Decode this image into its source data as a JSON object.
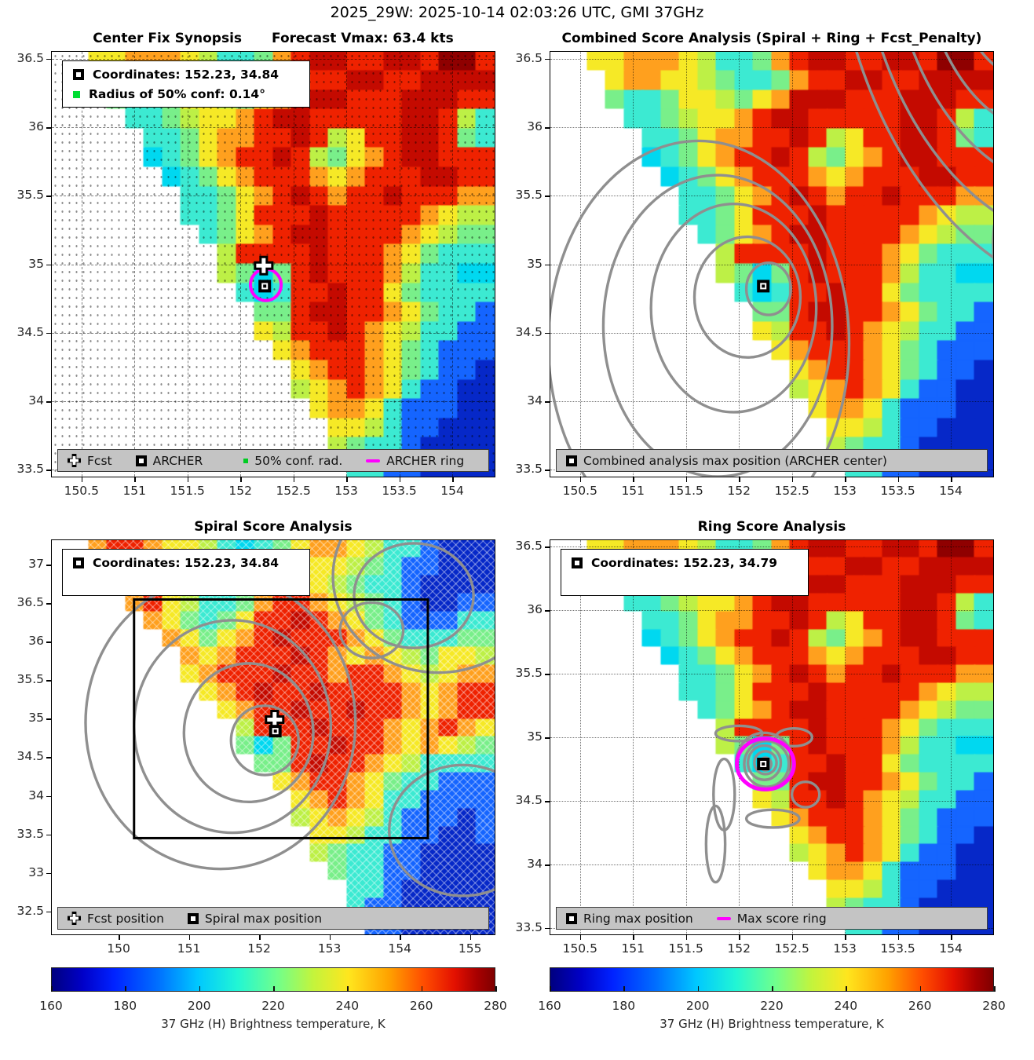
{
  "header": {
    "title": "2025_29W: 2025-10-14 02:03:26 UTC, GMI 37GHz"
  },
  "palette": {
    ".": "#ffffff",
    "B": "#0628c8",
    "b": "#1565ff",
    "C": "#00d8f0",
    "c": "#3cead2",
    "g": "#79ef8a",
    "G": "#bdf046",
    "y": "#f6e926",
    "o": "#ffa01e",
    "O": "#ff5a0c",
    "r": "#ef2200",
    "R": "#c40a00",
    "D": "#8f0000"
  },
  "accent_colors": {
    "ring_magenta": "#ff00ff",
    "contour_gray": "#8f8f8f",
    "legend_bar_gray": "#c4c4c4"
  },
  "chart_data": {
    "type": "heatmap",
    "summary": {
      "storm_id": "2025_29W",
      "time_utc": "2025-10-14 02:03:26",
      "sensor": "GMI 37GHz",
      "forecast_vmax_kts": 63.4,
      "archer_center": {
        "lon": 152.23,
        "lat": 34.84
      },
      "radius_50pct_conf_deg": 0.14,
      "spiral_max": {
        "lon": 152.23,
        "lat": 34.84
      },
      "ring_max": {
        "lon": 152.23,
        "lat": 34.79
      }
    },
    "colorbar": {
      "min": 160,
      "max": 280,
      "ticks": [
        "160",
        "180",
        "200",
        "220",
        "240",
        "260",
        "280"
      ],
      "label": "37 GHz (H) Brightness temperature, K"
    },
    "panels": [
      {
        "id": "center-fix-synopsis",
        "title": "Center Fix Synopsis",
        "title2": "Forecast Vmax: 63.4 kts",
        "xlim": [
          150.22,
          154.4
        ],
        "ylim": [
          33.45,
          36.55
        ],
        "xticks": [
          {
            "v": 150.5,
            "t": "150.5"
          },
          {
            "v": 151,
            "t": "151"
          },
          {
            "v": 151.5,
            "t": "151.5"
          },
          {
            "v": 152,
            "t": "152"
          },
          {
            "v": 152.5,
            "t": "152.5"
          },
          {
            "v": 153,
            "t": "153"
          },
          {
            "v": 153.5,
            "t": "153.5"
          },
          {
            "v": 154,
            "t": "154"
          }
        ],
        "yticks": [
          {
            "v": 36.5,
            "t": "36.5"
          },
          {
            "v": 36,
            "t": "36"
          },
          {
            "v": 35.5,
            "t": "35.5"
          },
          {
            "v": 35,
            "t": "35"
          },
          {
            "v": 34.5,
            "t": "34.5"
          },
          {
            "v": 34,
            "t": "34"
          },
          {
            "v": 33.5,
            "t": "33.5"
          }
        ],
        "grid": "dash",
        "dots": true,
        "hatch": false,
        "heatmap_rows": [
          "..yyoooyGccgorRRrrRRrDDr",
          "...yooyyGgccgorrRRrrRRRR",
          "...gccgyyGgyoRRRrrrRRRrr",
          "....ccgGyyorRRrrrrrRRrGc",
          ".....ccgyoorrRrGyrrRRrgc",
          ".....CcgyorrRrGgyorRRrrr",
          "......CcgyorrroyorrrRRrr",
          ".......ccgyorRrorrRrrroo",
          ".......ccgyrrrRrrrrroyGG",
          "........cgyorRRrrrroyGgg",
          ".........GrrrrRrrroygccc",
          ".........GgCgrRrrroGccCC",
          "..........cCcrrRrrygcccc",
          "...........ggrRRrroygccb",
          "...........yGrrRroyGccbb",
          "............yorrroygcbbb",
          ".............yorroygcbbB",
          ".............GyoroycbbBB",
          "..............yooycbbbBB",
          "...............yyGcbbBBB",
          "...............GgccbBBBB",
          "................ccbbBBBB"
        ],
        "contours": [],
        "rings": [
          {
            "x": 152.24,
            "y": 34.85,
            "rx": 0.145,
            "ry": 0.115,
            "color": "#ff00ff",
            "w": 4,
            "name": "archer-ring"
          }
        ],
        "markers": [
          {
            "type": "plus",
            "x": 152.22,
            "y": 34.99
          },
          {
            "type": "square",
            "x": 152.23,
            "y": 34.84
          }
        ],
        "legend_box": [
          {
            "marker": "square",
            "label": "Coordinates: 152.23, 34.84"
          },
          {
            "marker": "greensq",
            "label": "Radius of 50% conf: 0.14°"
          }
        ],
        "legend_bar": [
          {
            "marker": "plus",
            "label": "Fcst"
          },
          {
            "marker": "square",
            "label": "ARCHER"
          },
          {
            "marker": "greendot",
            "label": "50% conf. rad."
          },
          {
            "marker": "magline",
            "label": "ARCHER ring"
          }
        ]
      },
      {
        "id": "combined-score-analysis",
        "title": "Combined Score Analysis (Spiral + Ring + Fcst_Penalty)",
        "title2": "",
        "xlim": [
          150.22,
          154.4
        ],
        "ylim": [
          33.45,
          36.55
        ],
        "xticks": [
          {
            "v": 150.5,
            "t": "150.5"
          },
          {
            "v": 151,
            "t": "151"
          },
          {
            "v": 151.5,
            "t": "151.5"
          },
          {
            "v": 152,
            "t": "152"
          },
          {
            "v": 152.5,
            "t": "152.5"
          },
          {
            "v": 153,
            "t": "153"
          },
          {
            "v": 153.5,
            "t": "153.5"
          },
          {
            "v": 154,
            "t": "154"
          }
        ],
        "yticks": [
          {
            "v": 36.5,
            "t": "36.5"
          },
          {
            "v": 36,
            "t": "36"
          },
          {
            "v": 35.5,
            "t": "35.5"
          },
          {
            "v": 35,
            "t": "35"
          },
          {
            "v": 34.5,
            "t": "34.5"
          },
          {
            "v": 34,
            "t": "34"
          },
          {
            "v": 33.5,
            "t": "33.5"
          }
        ],
        "grid": "dot",
        "dots": false,
        "hatch": false,
        "heatmap_ref": 0,
        "contours": [
          [
            152.28,
            34.82,
            0.21,
            0.19
          ],
          [
            152.08,
            34.76,
            0.5,
            0.44
          ],
          [
            151.95,
            34.68,
            0.78,
            0.76
          ],
          [
            151.8,
            34.55,
            1.08,
            1.1
          ],
          [
            151.62,
            34.42,
            1.42,
            1.48
          ],
          [
            154.75,
            37.3,
            0.75,
            0.95
          ],
          [
            154.95,
            37.45,
            1.25,
            1.5
          ],
          [
            155.15,
            37.6,
            1.75,
            2.05
          ],
          [
            155.35,
            37.75,
            2.25,
            2.6
          ],
          [
            155.55,
            37.9,
            2.7,
            3.15
          ],
          [
            155.7,
            35.15,
            1.3,
            1.05
          ]
        ],
        "rings": [],
        "markers": [
          {
            "type": "square",
            "x": 152.23,
            "y": 34.84
          }
        ],
        "legend_box": null,
        "legend_bar": [
          {
            "marker": "square",
            "label": "Combined analysis max position (ARCHER center)"
          }
        ]
      },
      {
        "id": "spiral-score-analysis",
        "title": "Spiral Score Analysis",
        "title2": "",
        "xlim": [
          149.05,
          155.35
        ],
        "ylim": [
          32.2,
          37.32
        ],
        "xticks": [
          {
            "v": 150,
            "t": "150"
          },
          {
            "v": 151,
            "t": "151"
          },
          {
            "v": 152,
            "t": "152"
          },
          {
            "v": 153,
            "t": "153"
          },
          {
            "v": 154,
            "t": "154"
          },
          {
            "v": 155,
            "t": "155"
          }
        ],
        "yticks": [
          {
            "v": 37,
            "t": "37"
          },
          {
            "v": 36.5,
            "t": "36.5"
          },
          {
            "v": 36,
            "t": "36"
          },
          {
            "v": 35.5,
            "t": "35.5"
          },
          {
            "v": 35,
            "t": "35"
          },
          {
            "v": 34.5,
            "t": "34.5"
          },
          {
            "v": 34,
            "t": "34"
          },
          {
            "v": 33.5,
            "t": "33.5"
          },
          {
            "v": 33,
            "t": "33"
          },
          {
            "v": 32.5,
            "t": "32.5"
          }
        ],
        "grid": "none",
        "dots": false,
        "hatch": true,
        "heatmap_rows": [
          "..orroyyGcCcgyooyGccbBBB",
          "...rrooygcccgGyyGgcbbBBB",
          "....rroygcgyyoyGgccbBBBB",
          "....oryGccgorroyGgcbBBbb",
          ".....oygcgyrrRroygcbbbcc",
          "......oygyorRrrroygcccgg",
          ".......oyorrrRroyoyGgyyG",
          ".......yorrrRrrorroyGyoo",
          "........yorRrrRrrrroyorr",
          ".........yorrRrrRrroyorr",
          "..........GrrrRrrroyoroy",
          "..........gCgrrRrroyoyGg",
          "...........ggrRrroyGcccc",
          "............yorroygccbbb",
          ".............yoroyccbbbb",
          ".............GyoyGcbbbBb",
          "..............yyGccbbBBb",
          "..............GgccbbBBBB",
          "...............gccbbBBBB",
          "................ccbBBBBB",
          "................cbbBBBBB",
          ".................bbBBBBB"
        ],
        "contours": [
          [
            152.08,
            34.72,
            0.48,
            0.45
          ],
          [
            151.85,
            34.82,
            0.92,
            0.9
          ],
          [
            151.62,
            34.9,
            1.4,
            1.38
          ],
          [
            151.45,
            34.95,
            1.92,
            1.9
          ],
          [
            153.6,
            36.15,
            0.45,
            0.36
          ],
          [
            154.2,
            36.6,
            0.85,
            0.68
          ],
          [
            154.55,
            36.85,
            1.5,
            1.25
          ],
          [
            154.9,
            33.55,
            1.05,
            0.85
          ]
        ],
        "box": {
          "x0": 150.22,
          "x1": 154.4,
          "y0": 33.45,
          "y1": 36.55
        },
        "rings": [],
        "markers": [
          {
            "type": "plus",
            "x": 152.22,
            "y": 34.99
          },
          {
            "type": "square",
            "x": 152.23,
            "y": 34.84
          }
        ],
        "legend_box": [
          {
            "marker": "square",
            "label": "Coordinates: 152.23, 34.84"
          }
        ],
        "legend_bar": [
          {
            "marker": "plus",
            "label": "Fcst position"
          },
          {
            "marker": "square",
            "label": "Spiral max position"
          }
        ]
      },
      {
        "id": "ring-score-analysis",
        "title": "Ring Score Analysis",
        "title2": "",
        "xlim": [
          150.22,
          154.4
        ],
        "ylim": [
          33.45,
          36.55
        ],
        "xticks": [
          {
            "v": 150.5,
            "t": "150.5"
          },
          {
            "v": 151,
            "t": "151"
          },
          {
            "v": 151.5,
            "t": "151.5"
          },
          {
            "v": 152,
            "t": "152"
          },
          {
            "v": 152.5,
            "t": "152.5"
          },
          {
            "v": 153,
            "t": "153"
          },
          {
            "v": 153.5,
            "t": "153.5"
          },
          {
            "v": 154,
            "t": "154"
          }
        ],
        "yticks": [
          {
            "v": 36.5,
            "t": "36.5"
          },
          {
            "v": 36,
            "t": "36"
          },
          {
            "v": 35.5,
            "t": "35.5"
          },
          {
            "v": 35,
            "t": "35"
          },
          {
            "v": 34.5,
            "t": "34.5"
          },
          {
            "v": 34,
            "t": "34"
          },
          {
            "v": 33.5,
            "t": "33.5"
          }
        ],
        "grid": "dot",
        "dots": false,
        "hatch": false,
        "heatmap_ref": 0,
        "contours": [
          [
            152.25,
            34.79,
            0.055,
            0.05
          ],
          [
            152.25,
            34.8,
            0.105,
            0.09
          ],
          [
            152.24,
            34.8,
            0.155,
            0.135
          ],
          [
            152.26,
            34.79,
            0.21,
            0.18
          ],
          [
            152.24,
            34.81,
            0.265,
            0.225
          ],
          [
            152.0,
            35.03,
            0.22,
            0.06
          ],
          [
            152.52,
            35.0,
            0.17,
            0.07
          ],
          [
            151.86,
            34.55,
            0.1,
            0.28
          ],
          [
            151.78,
            34.16,
            0.09,
            0.3
          ],
          [
            152.63,
            34.55,
            0.13,
            0.1
          ],
          [
            152.32,
            34.36,
            0.25,
            0.07
          ]
        ],
        "rings": [
          {
            "x": 152.25,
            "y": 34.79,
            "rx": 0.27,
            "ry": 0.2,
            "color": "#ff00ff",
            "w": 5,
            "name": "max-score-ring"
          }
        ],
        "markers": [
          {
            "type": "square",
            "x": 152.23,
            "y": 34.79
          }
        ],
        "legend_box": [
          {
            "marker": "square",
            "label": "Coordinates: 152.23, 34.79"
          }
        ],
        "legend_bar": [
          {
            "marker": "square",
            "label": "Ring max position"
          },
          {
            "marker": "magline",
            "label": "Max score ring"
          }
        ]
      }
    ]
  }
}
